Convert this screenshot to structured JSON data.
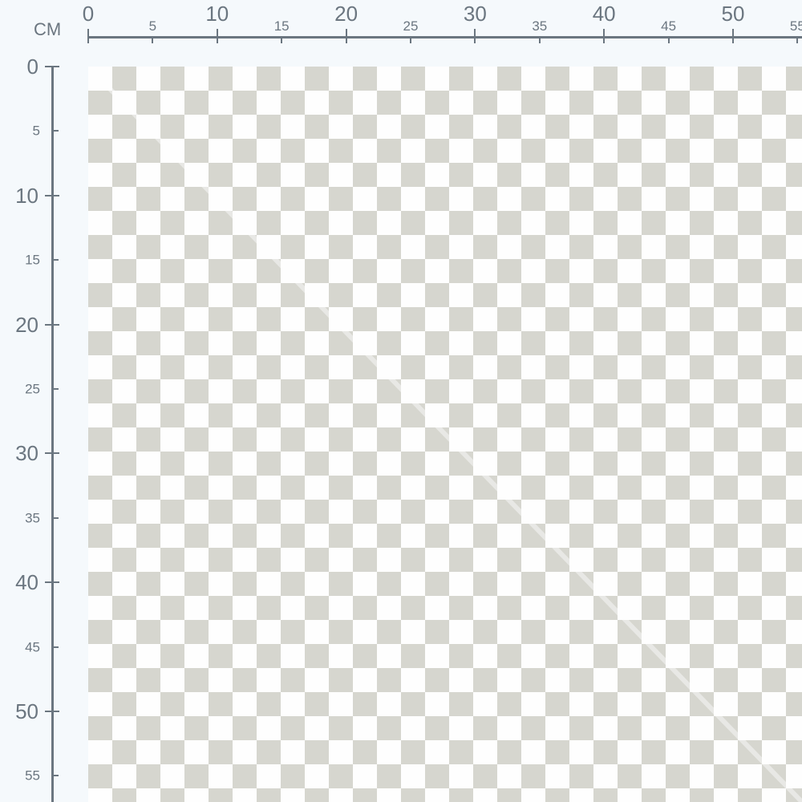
{
  "ruler": {
    "unit": "CM",
    "horizontal_labels": [
      "0",
      "5",
      "10",
      "15",
      "20",
      "25",
      "30",
      "35",
      "40",
      "45",
      "50",
      "55"
    ],
    "vertical_labels": [
      "0",
      "5",
      "10",
      "15",
      "20",
      "25",
      "30",
      "35",
      "40",
      "45",
      "50",
      "55"
    ]
  },
  "colors": {
    "ruler": "#6b7680",
    "check_dark": "#d6d6cf",
    "check_light": "#fefefe",
    "background": "#f5f9fc"
  }
}
